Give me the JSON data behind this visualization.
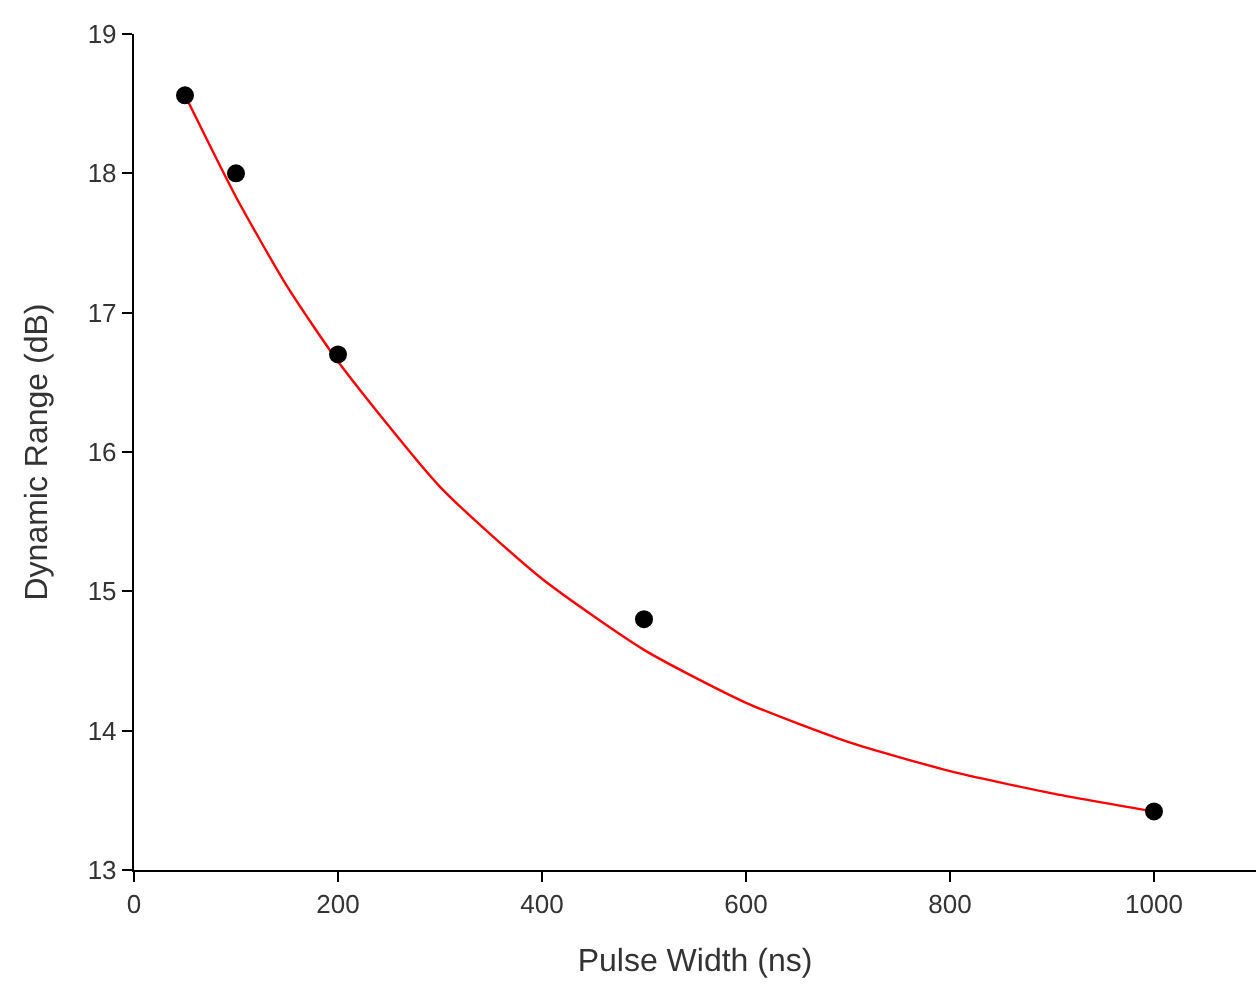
{
  "chart_data": {
    "type": "scatter",
    "xlabel": "Pulse Width (ns)",
    "ylabel": "Dynamic Range (dB)",
    "series": [
      {
        "color": "#000000",
        "marker": "circle",
        "x": [
          50,
          100,
          200,
          500,
          1000
        ],
        "values": [
          18.56,
          18.0,
          16.7,
          14.8,
          13.42
        ]
      },
      {
        "type": "line",
        "color": "#ff0000",
        "marker": "none",
        "x": [
          50,
          100,
          150,
          200,
          300,
          400,
          500,
          600,
          700,
          800,
          900,
          1000
        ],
        "values": [
          18.56,
          17.83,
          17.19,
          16.65,
          15.75,
          15.09,
          14.58,
          14.2,
          13.92,
          13.71,
          13.55,
          13.42
        ]
      }
    ],
    "xlim": [
      0,
      1100
    ],
    "xticks": [
      0,
      200,
      400,
      600,
      800,
      1000
    ],
    "ylim": [
      13,
      19
    ],
    "yticks": [
      13,
      14,
      15,
      16,
      17,
      18,
      19
    ]
  }
}
